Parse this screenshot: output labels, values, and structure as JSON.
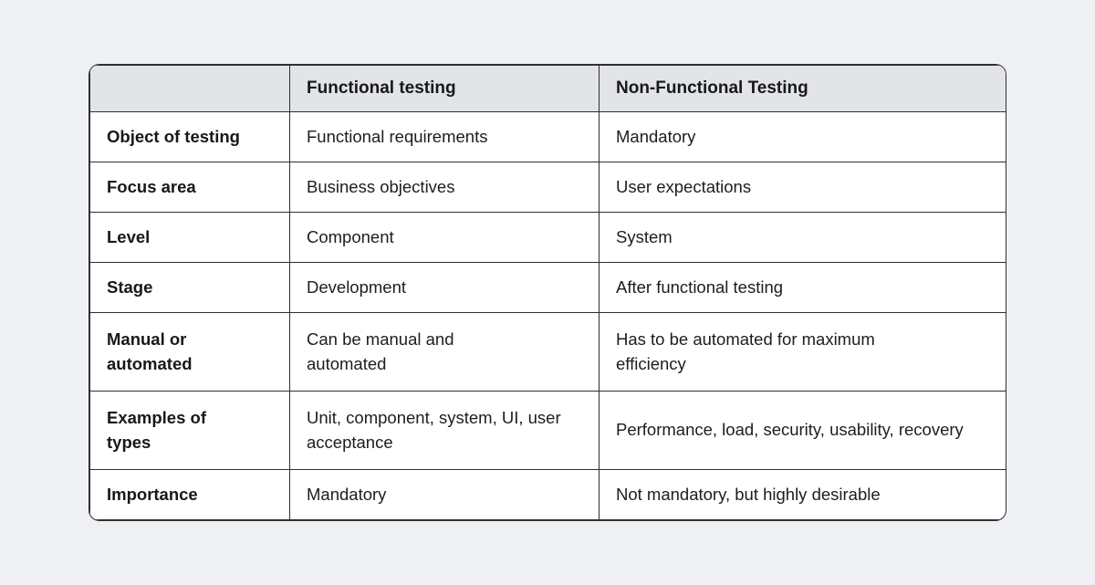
{
  "page": {
    "background_color": "#eef0f4"
  },
  "table": {
    "title_semantic": "Functional vs Non-Functional testing comparison",
    "colors": {
      "header_background": "#e2e4e7",
      "border": "#2f2f31",
      "text": "#1d1d1f",
      "cell_background": "#ffffff"
    },
    "headers": [
      "",
      "Functional testing",
      "Non-Functional Testing"
    ],
    "rows": [
      {
        "label": "Object of testing",
        "functional": "Functional requirements",
        "non_functional": "Mandatory"
      },
      {
        "label": "Focus area",
        "functional": "Business objectives",
        "non_functional": "User expectations"
      },
      {
        "label": "Level",
        "functional": "Component",
        "non_functional": "System"
      },
      {
        "label": "Stage",
        "functional": "Development",
        "non_functional": "After functional testing"
      },
      {
        "label": "Manual or automated",
        "functional": "Can be manual and automated",
        "non_functional": "Has to be automated for maximum efficiency"
      },
      {
        "label": "Examples of types",
        "functional": "Unit, component, system, UI, user acceptance",
        "non_functional": "Performance, load, security, usability, recovery"
      },
      {
        "label": "Importance",
        "functional": "Mandatory",
        "non_functional": "Not mandatory, but highly desirable"
      }
    ]
  }
}
